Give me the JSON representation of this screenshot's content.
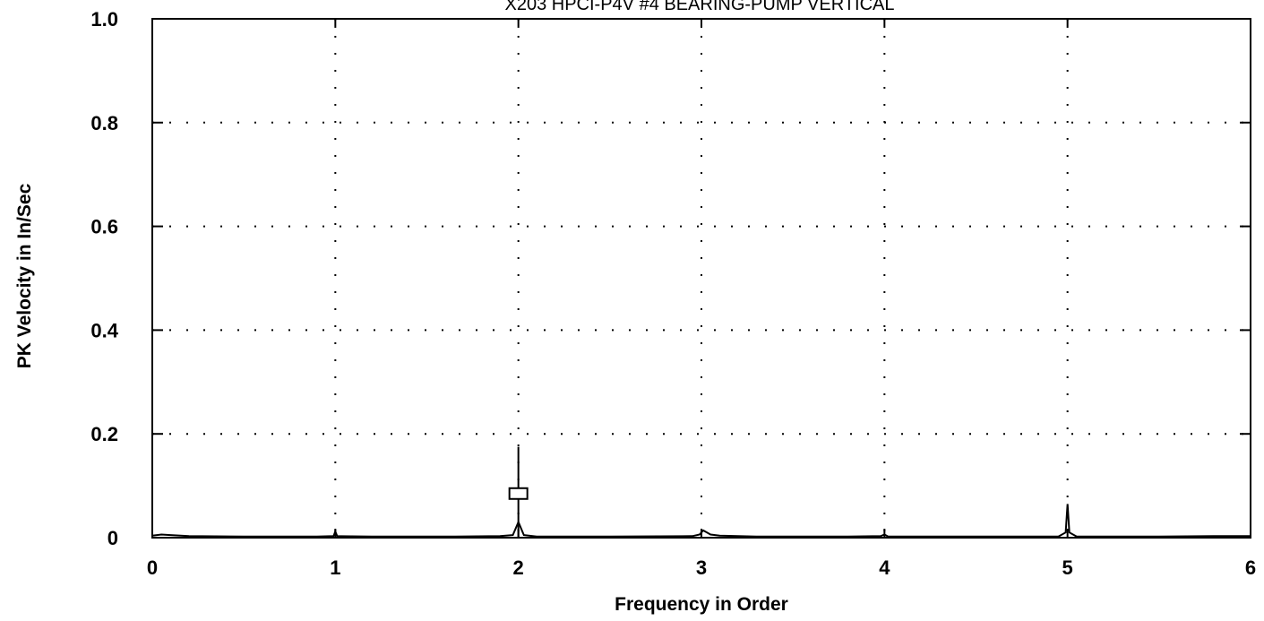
{
  "chart_data": {
    "type": "line",
    "title": "X203 HPCI-P4V   #4 BEARING-PUMP VERTICAL",
    "xlabel": "Frequency in Order",
    "ylabel": "PK Velocity in In/Sec",
    "xlim": [
      0,
      6
    ],
    "ylim": [
      0,
      1.0
    ],
    "x_ticks": [
      "0",
      "1",
      "2",
      "3",
      "4",
      "5",
      "6"
    ],
    "y_ticks": [
      "0",
      "0.2",
      "0.4",
      "0.6",
      "0.8",
      "1.0"
    ],
    "grid": "dotted",
    "series": [
      {
        "points": [
          [
            0.0,
            0.004
          ],
          [
            0.05,
            0.006
          ],
          [
            0.1,
            0.005
          ],
          [
            0.2,
            0.003
          ],
          [
            0.5,
            0.002
          ],
          [
            0.9,
            0.002
          ],
          [
            0.99,
            0.003
          ],
          [
            1.0,
            0.012
          ],
          [
            1.01,
            0.003
          ],
          [
            1.2,
            0.002
          ],
          [
            1.6,
            0.002
          ],
          [
            1.9,
            0.003
          ],
          [
            1.97,
            0.005
          ],
          [
            2.0,
            0.03
          ],
          [
            2.03,
            0.005
          ],
          [
            2.1,
            0.002
          ],
          [
            2.5,
            0.002
          ],
          [
            2.95,
            0.003
          ],
          [
            2.99,
            0.006
          ],
          [
            3.01,
            0.014
          ],
          [
            3.05,
            0.006
          ],
          [
            3.1,
            0.004
          ],
          [
            3.3,
            0.002
          ],
          [
            3.8,
            0.002
          ],
          [
            3.98,
            0.003
          ],
          [
            4.0,
            0.006
          ],
          [
            4.02,
            0.002
          ],
          [
            4.5,
            0.002
          ],
          [
            4.95,
            0.002
          ],
          [
            4.99,
            0.01
          ],
          [
            5.0,
            0.065
          ],
          [
            5.01,
            0.01
          ],
          [
            5.05,
            0.002
          ],
          [
            5.5,
            0.002
          ],
          [
            5.8,
            0.003
          ],
          [
            6.0,
            0.003
          ]
        ]
      }
    ],
    "cursor": {
      "x": 2.0,
      "y": 0.085,
      "line_top": 0.175
    }
  }
}
